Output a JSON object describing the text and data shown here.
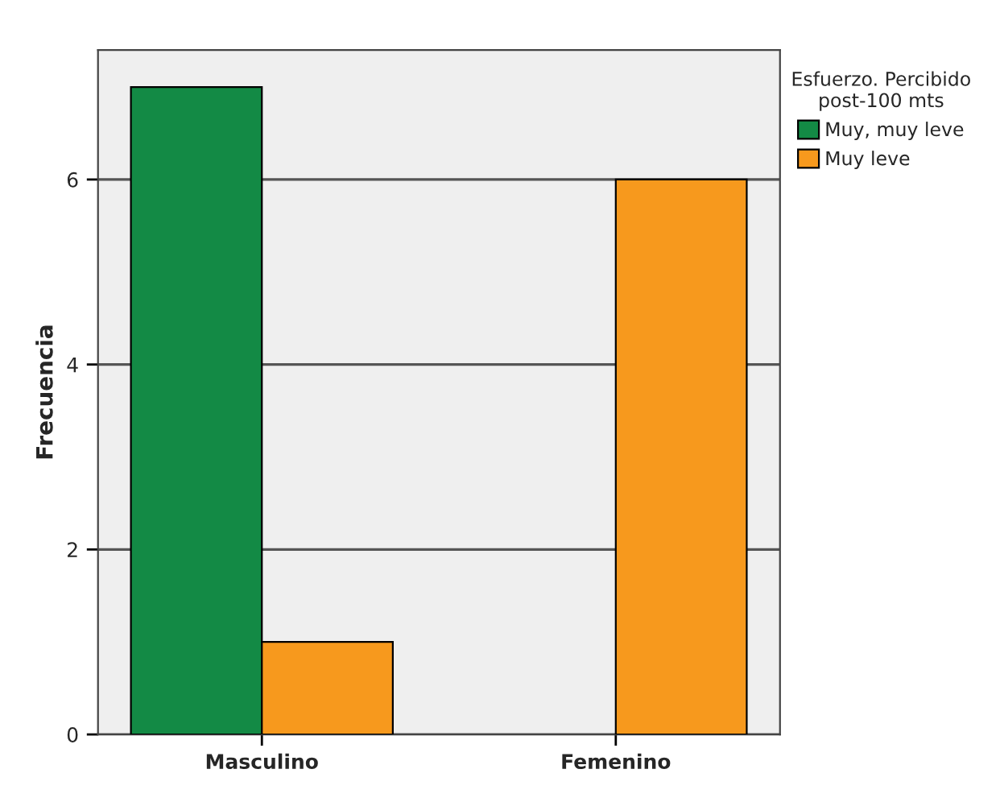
{
  "chart_data": {
    "type": "bar",
    "ylabel": "Frecuencia",
    "legend_title": "Esfuerzo. Percibido\npost-100 mts",
    "categories": [
      "Masculino",
      "Femenino"
    ],
    "series": [
      {
        "name": "Muy, muy leve",
        "color": "#138a45",
        "values": [
          7,
          null
        ]
      },
      {
        "name": "Muy leve",
        "color": "#f7991d",
        "values": [
          1,
          6
        ]
      }
    ],
    "ylim": [
      0,
      7.4
    ],
    "yticks": [
      0,
      2,
      4,
      6
    ],
    "grid": "y",
    "legend": "right"
  }
}
